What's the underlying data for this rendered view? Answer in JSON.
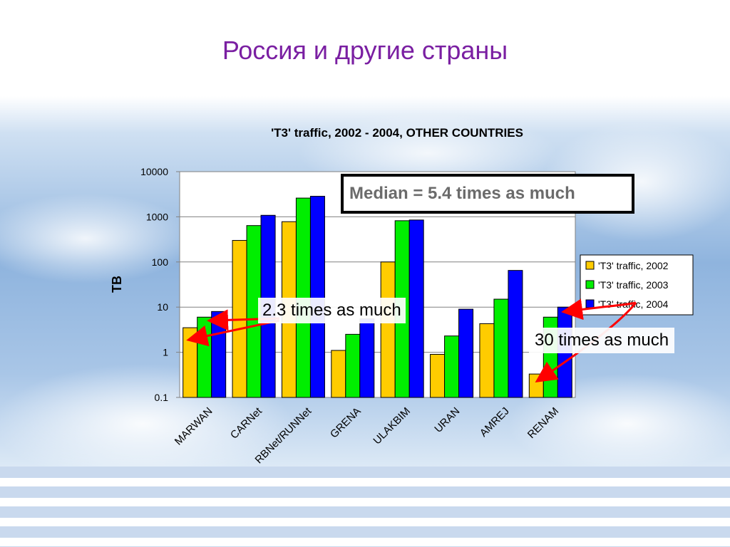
{
  "slide": {
    "title": "Россия и другие страны"
  },
  "annotations": {
    "median": "Median = 5.4 times as much",
    "note_left": "2.3 times as much",
    "note_right": "30 times as much"
  },
  "colors": {
    "series_2002": "#ffcc00",
    "series_2003": "#00ee00",
    "series_2004": "#0000ff",
    "title": "#7a1fa2",
    "arrow": "#ff0000"
  },
  "chart_data": {
    "type": "bar",
    "title": "'T3' traffic, 2002 - 2004, OTHER COUNTRIES",
    "ylabel": "TB",
    "yscale": "log",
    "ylim": [
      0.1,
      10000
    ],
    "yticks": [
      "10000",
      "1000",
      "100",
      "10",
      "1",
      "0.1"
    ],
    "grid": true,
    "legend_position": "right",
    "categories": [
      "MARWAN",
      "CARNet",
      "RBNet/RUNNet",
      "GRENA",
      "ULAKBIM",
      "URAN",
      "AMREJ",
      "RENAM"
    ],
    "series": [
      {
        "name": "'T3' traffic, 2002",
        "values": [
          3.5,
          300,
          780,
          1.1,
          100,
          0.9,
          4.3,
          0.33
        ]
      },
      {
        "name": "'T3' traffic, 2003",
        "values": [
          6,
          640,
          2600,
          2.5,
          820,
          2.3,
          15,
          6
        ]
      },
      {
        "name": "'T3' traffic, 2004",
        "values": [
          8,
          1080,
          2850,
          5.5,
          850,
          9,
          65,
          10
        ]
      }
    ]
  }
}
